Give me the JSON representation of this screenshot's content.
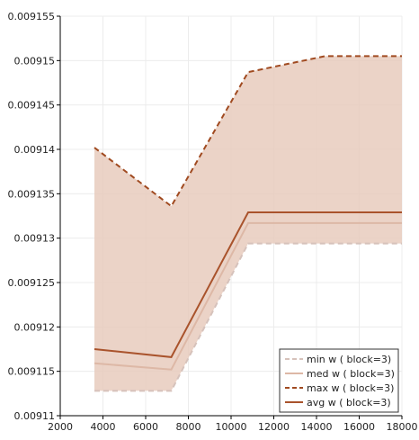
{
  "chart_data": {
    "type": "line",
    "title": "",
    "xlabel": "",
    "ylabel": "",
    "xlim": [
      2000,
      18000
    ],
    "ylim": [
      0.00911,
      0.009155
    ],
    "x_ticks": [
      2000,
      4000,
      6000,
      8000,
      10000,
      12000,
      14000,
      16000,
      18000
    ],
    "y_ticks": [
      0.00911,
      0.009115,
      0.00912,
      0.009125,
      0.00913,
      0.009135,
      0.00914,
      0.009145,
      0.00915,
      0.009155
    ],
    "x_tick_labels": [
      "2000",
      "4000",
      "6000",
      "8000",
      "10000",
      "12000",
      "14000",
      "16000",
      "18000"
    ],
    "y_tick_labels": [
      "0.00911",
      "0.009115",
      "0.00912",
      "0.009125",
      "0.00913",
      "0.009135",
      "0.00914",
      "0.009145",
      "0.00915",
      "0.009155"
    ],
    "grid": true,
    "legend_position": "bottom-right",
    "band": {
      "lower": "min w ( block=3)",
      "upper": "max w ( block=3)",
      "color": "#e7cbbd"
    },
    "series": [
      {
        "name": "min w ( block=3)",
        "style": "dashed",
        "color": "#d6c2bb",
        "x": [
          3600,
          7200,
          10800,
          12600,
          14400,
          18000
        ],
        "y": [
          0.0091128,
          0.0091128,
          0.0091294,
          0.0091294,
          0.0091294,
          0.0091294
        ]
      },
      {
        "name": "med w ( block=3)",
        "style": "solid",
        "color": "#ddb8a6",
        "x": [
          3600,
          7200,
          10800,
          12600,
          14400,
          18000
        ],
        "y": [
          0.0091159,
          0.0091152,
          0.0091317,
          0.0091317,
          0.0091317,
          0.0091317
        ]
      },
      {
        "name": "max w ( block=3)",
        "style": "dashed",
        "color": "#a04a20",
        "x": [
          3600,
          7200,
          10800,
          12600,
          14400,
          18000
        ],
        "y": [
          0.0091402,
          0.0091336,
          0.0091487,
          0.0091496,
          0.0091505,
          0.0091505
        ]
      },
      {
        "name": "avg w ( block=3)",
        "style": "solid",
        "color": "#a9532c",
        "x": [
          3600,
          7200,
          10800,
          12600,
          14400,
          18000
        ],
        "y": [
          0.0091175,
          0.0091166,
          0.0091329,
          0.0091329,
          0.0091329,
          0.0091329
        ]
      }
    ]
  }
}
